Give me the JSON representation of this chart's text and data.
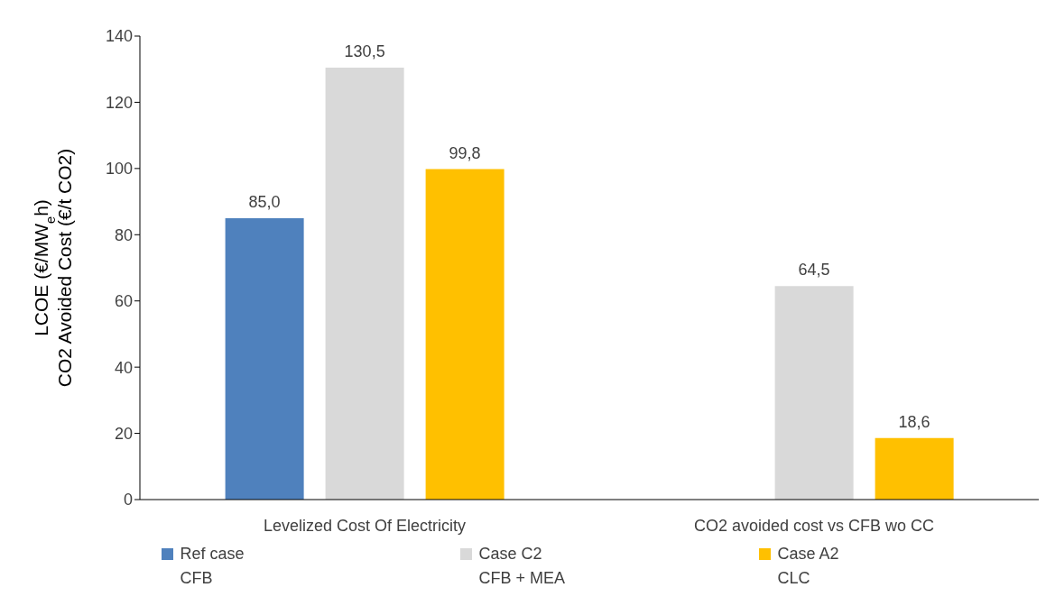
{
  "chart_data": {
    "type": "bar",
    "ylabel": "LCOE (€/MW$_{e}$h)\nCO2 Avoided Cost (€/t CO2)",
    "categories": [
      "Levelized Cost Of Electricity",
      "CO2 avoided cost vs CFB wo CC"
    ],
    "series": [
      {
        "name": "Ref case\nCFB",
        "color": "#4f81bd",
        "values": [
          85.0,
          null
        ],
        "value_labels": [
          "85,0",
          null
        ]
      },
      {
        "name": "Case C2\nCFB + MEA",
        "color": "#d9d9d9",
        "values": [
          130.5,
          64.5
        ],
        "value_labels": [
          "130,5",
          "64,5"
        ]
      },
      {
        "name": "Case A2\nCLC",
        "color": "#ffc000",
        "values": [
          99.8,
          18.6
        ],
        "value_labels": [
          "99,8",
          "18,6"
        ]
      }
    ],
    "ylim": [
      0,
      140
    ],
    "yticks": [
      0,
      20,
      40,
      60,
      80,
      100,
      120,
      140
    ],
    "grid": false,
    "legend": "bottom"
  }
}
